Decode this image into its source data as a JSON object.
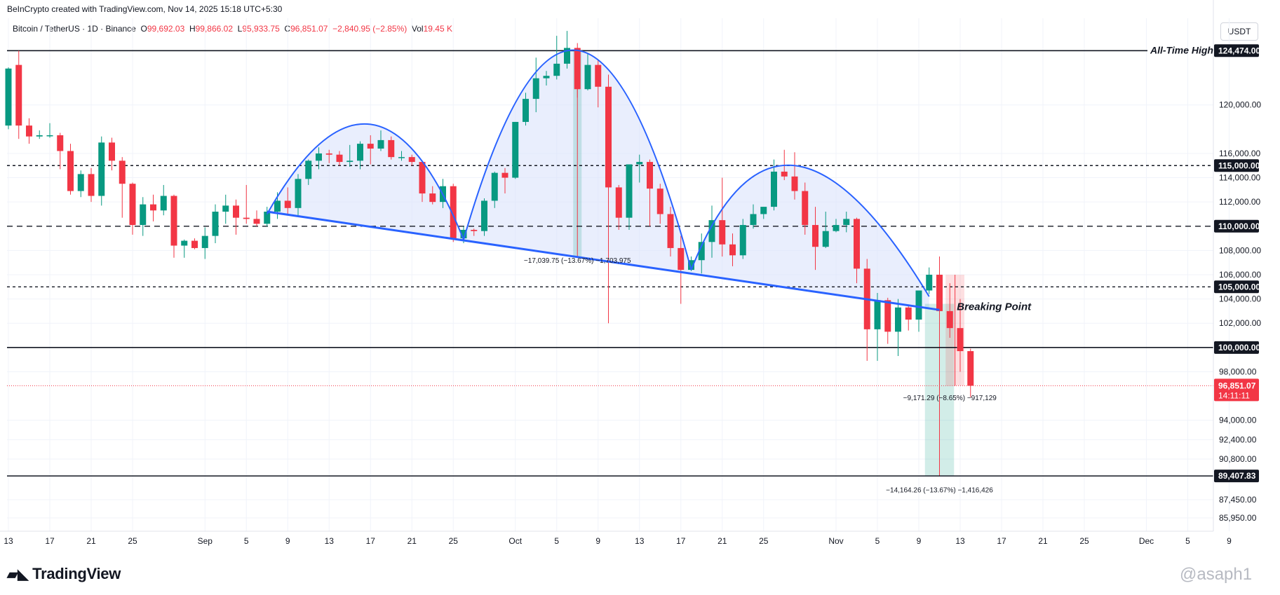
{
  "header": {
    "creator": "BeInCrypto created with TradingView.com, Nov 14, 2025 15:18 UTC+5:30",
    "symbol": "Bitcoin / TetherUS · 1D · Binance",
    "ohlc": {
      "open_label": "O",
      "open": "99,692.03",
      "high_label": "H",
      "high": "99,866.02",
      "low_label": "L",
      "low": "95,933.75",
      "close_label": "C",
      "close": "96,851.07",
      "change": "−2,840.95 (−2.85%)",
      "vol_label": "Vol",
      "vol": "19.45 K"
    },
    "currency": "USDT"
  },
  "footer": {
    "brand": "TradingView",
    "watermark": "@asaph1"
  },
  "colors": {
    "up": "#089981",
    "down": "#f23645",
    "pattern": "#2962ff",
    "pattern_fill": "#dbe3fb"
  },
  "chart_data": {
    "type": "candlestick",
    "ylim": [
      84850,
      127150
    ],
    "y_ticks": [
      {
        "value": 120000,
        "label": "120,000.00"
      },
      {
        "value": 116000,
        "label": "116,000.00"
      },
      {
        "value": 114000,
        "label": "114,000.00"
      },
      {
        "value": 112000,
        "label": "112,000.00"
      },
      {
        "value": 108000,
        "label": "108,000.00"
      },
      {
        "value": 106000,
        "label": "106,000.00"
      },
      {
        "value": 104000,
        "label": "104,000.00"
      },
      {
        "value": 102000,
        "label": "102,000.00"
      },
      {
        "value": 98000,
        "label": "98,000.00"
      },
      {
        "value": 94000,
        "label": "94,000.00"
      },
      {
        "value": 92400,
        "label": "92,400.00"
      },
      {
        "value": 90800,
        "label": "90,800.00"
      },
      {
        "value": 87450,
        "label": "87,450.00"
      },
      {
        "value": 85950,
        "label": "85,950.00"
      }
    ],
    "x_ticks": [
      {
        "date": "2025-08-13",
        "label": "13"
      },
      {
        "date": "2025-08-17",
        "label": "17"
      },
      {
        "date": "2025-08-21",
        "label": "21"
      },
      {
        "date": "2025-08-25",
        "label": "25"
      },
      {
        "date": "2025-09-01",
        "label": "Sep"
      },
      {
        "date": "2025-09-05",
        "label": "5"
      },
      {
        "date": "2025-09-09",
        "label": "9"
      },
      {
        "date": "2025-09-13",
        "label": "13"
      },
      {
        "date": "2025-09-17",
        "label": "17"
      },
      {
        "date": "2025-09-21",
        "label": "21"
      },
      {
        "date": "2025-09-25",
        "label": "25"
      },
      {
        "date": "2025-10-01",
        "label": "Oct"
      },
      {
        "date": "2025-10-05",
        "label": "5"
      },
      {
        "date": "2025-10-09",
        "label": "9"
      },
      {
        "date": "2025-10-13",
        "label": "13"
      },
      {
        "date": "2025-10-17",
        "label": "17"
      },
      {
        "date": "2025-10-21",
        "label": "21"
      },
      {
        "date": "2025-10-25",
        "label": "25"
      },
      {
        "date": "2025-11-01",
        "label": "Nov"
      },
      {
        "date": "2025-11-05",
        "label": "5"
      },
      {
        "date": "2025-11-09",
        "label": "9"
      },
      {
        "date": "2025-11-13",
        "label": "13"
      },
      {
        "date": "2025-11-17",
        "label": "17"
      },
      {
        "date": "2025-11-21",
        "label": "21"
      },
      {
        "date": "2025-11-25",
        "label": "25"
      },
      {
        "date": "2025-12-01",
        "label": "Dec"
      },
      {
        "date": "2025-12-05",
        "label": "5"
      },
      {
        "date": "2025-12-09",
        "label": "9"
      }
    ],
    "candles": [
      {
        "date": "2025-08-13",
        "o": 118300,
        "h": 123100,
        "l": 118000,
        "c": 123000
      },
      {
        "date": "2025-08-14",
        "o": 123300,
        "h": 124474,
        "l": 117200,
        "c": 118300
      },
      {
        "date": "2025-08-15",
        "o": 118300,
        "h": 118900,
        "l": 116800,
        "c": 117400
      },
      {
        "date": "2025-08-16",
        "o": 117400,
        "h": 117900,
        "l": 117200,
        "c": 117500
      },
      {
        "date": "2025-08-17",
        "o": 117500,
        "h": 118500,
        "l": 117300,
        "c": 117500
      },
      {
        "date": "2025-08-18",
        "o": 117500,
        "h": 117700,
        "l": 114700,
        "c": 116200
      },
      {
        "date": "2025-08-19",
        "o": 116200,
        "h": 116800,
        "l": 112600,
        "c": 112900
      },
      {
        "date": "2025-08-20",
        "o": 112900,
        "h": 114600,
        "l": 112400,
        "c": 114300
      },
      {
        "date": "2025-08-21",
        "o": 114300,
        "h": 114800,
        "l": 112000,
        "c": 112500
      },
      {
        "date": "2025-08-22",
        "o": 112500,
        "h": 117400,
        "l": 111700,
        "c": 116900
      },
      {
        "date": "2025-08-23",
        "o": 116900,
        "h": 117300,
        "l": 114600,
        "c": 115400
      },
      {
        "date": "2025-08-24",
        "o": 115400,
        "h": 115700,
        "l": 110700,
        "c": 113500
      },
      {
        "date": "2025-08-25",
        "o": 113500,
        "h": 113600,
        "l": 109300,
        "c": 110100
      },
      {
        "date": "2025-08-26",
        "o": 110100,
        "h": 112400,
        "l": 109200,
        "c": 111800
      },
      {
        "date": "2025-08-27",
        "o": 111800,
        "h": 112600,
        "l": 110400,
        "c": 111300
      },
      {
        "date": "2025-08-28",
        "o": 111300,
        "h": 113400,
        "l": 110900,
        "c": 112500
      },
      {
        "date": "2025-08-29",
        "o": 112500,
        "h": 112600,
        "l": 107400,
        "c": 108400
      },
      {
        "date": "2025-08-30",
        "o": 108400,
        "h": 108900,
        "l": 107400,
        "c": 108800
      },
      {
        "date": "2025-08-31",
        "o": 108800,
        "h": 109000,
        "l": 108100,
        "c": 108200
      },
      {
        "date": "2025-09-01",
        "o": 108200,
        "h": 109900,
        "l": 107300,
        "c": 109200
      },
      {
        "date": "2025-09-02",
        "o": 109200,
        "h": 111800,
        "l": 108600,
        "c": 111200
      },
      {
        "date": "2025-09-03",
        "o": 111200,
        "h": 112600,
        "l": 110200,
        "c": 111700
      },
      {
        "date": "2025-09-04",
        "o": 111700,
        "h": 112200,
        "l": 109300,
        "c": 110700
      },
      {
        "date": "2025-09-05",
        "o": 110700,
        "h": 113400,
        "l": 110200,
        "c": 110600
      },
      {
        "date": "2025-09-06",
        "o": 110600,
        "h": 111300,
        "l": 110000,
        "c": 110200
      },
      {
        "date": "2025-09-07",
        "o": 110200,
        "h": 111600,
        "l": 110000,
        "c": 111200
      },
      {
        "date": "2025-09-08",
        "o": 111200,
        "h": 112800,
        "l": 110600,
        "c": 112100
      },
      {
        "date": "2025-09-09",
        "o": 112100,
        "h": 113200,
        "l": 110900,
        "c": 111500
      },
      {
        "date": "2025-09-10",
        "o": 111500,
        "h": 114300,
        "l": 110800,
        "c": 113900
      },
      {
        "date": "2025-09-11",
        "o": 113900,
        "h": 115500,
        "l": 113400,
        "c": 115400
      },
      {
        "date": "2025-09-12",
        "o": 115400,
        "h": 116500,
        "l": 114700,
        "c": 116000
      },
      {
        "date": "2025-09-13",
        "o": 116000,
        "h": 116300,
        "l": 115200,
        "c": 115900
      },
      {
        "date": "2025-09-14",
        "o": 115900,
        "h": 116200,
        "l": 115000,
        "c": 115300
      },
      {
        "date": "2025-09-15",
        "o": 115300,
        "h": 116700,
        "l": 114900,
        "c": 115400
      },
      {
        "date": "2025-09-16",
        "o": 115400,
        "h": 117000,
        "l": 114700,
        "c": 116800
      },
      {
        "date": "2025-09-17",
        "o": 116800,
        "h": 117500,
        "l": 115100,
        "c": 116400
      },
      {
        "date": "2025-09-18",
        "o": 116400,
        "h": 117900,
        "l": 116200,
        "c": 117100
      },
      {
        "date": "2025-09-19",
        "o": 117100,
        "h": 117400,
        "l": 115500,
        "c": 115700
      },
      {
        "date": "2025-09-20",
        "o": 115700,
        "h": 116200,
        "l": 115400,
        "c": 115700
      },
      {
        "date": "2025-09-21",
        "o": 115700,
        "h": 115900,
        "l": 115000,
        "c": 115300
      },
      {
        "date": "2025-09-22",
        "o": 115300,
        "h": 115400,
        "l": 112000,
        "c": 112700
      },
      {
        "date": "2025-09-23",
        "o": 112700,
        "h": 113300,
        "l": 111800,
        "c": 112000
      },
      {
        "date": "2025-09-24",
        "o": 112000,
        "h": 113900,
        "l": 111500,
        "c": 113300
      },
      {
        "date": "2025-09-25",
        "o": 113300,
        "h": 113500,
        "l": 108700,
        "c": 109000
      },
      {
        "date": "2025-09-26",
        "o": 109000,
        "h": 110000,
        "l": 108600,
        "c": 109700
      },
      {
        "date": "2025-09-27",
        "o": 109700,
        "h": 109800,
        "l": 109200,
        "c": 109600
      },
      {
        "date": "2025-09-28",
        "o": 109600,
        "h": 112300,
        "l": 109200,
        "c": 112100
      },
      {
        "date": "2025-09-29",
        "o": 112100,
        "h": 114500,
        "l": 111500,
        "c": 114400
      },
      {
        "date": "2025-09-30",
        "o": 114400,
        "h": 114800,
        "l": 112700,
        "c": 114000
      },
      {
        "date": "2025-10-01",
        "o": 114000,
        "h": 118600,
        "l": 113900,
        "c": 118600
      },
      {
        "date": "2025-10-02",
        "o": 118600,
        "h": 121000,
        "l": 118300,
        "c": 120500
      },
      {
        "date": "2025-10-03",
        "o": 120500,
        "h": 123900,
        "l": 119400,
        "c": 122200
      },
      {
        "date": "2025-10-04",
        "o": 122200,
        "h": 122800,
        "l": 121600,
        "c": 122400
      },
      {
        "date": "2025-10-05",
        "o": 122400,
        "h": 125700,
        "l": 122100,
        "c": 123400
      },
      {
        "date": "2025-10-06",
        "o": 123400,
        "h": 126100,
        "l": 123000,
        "c": 124700
      },
      {
        "date": "2025-10-07",
        "o": 124700,
        "h": 125100,
        "l": 120600,
        "c": 121300
      },
      {
        "date": "2025-10-08",
        "o": 121300,
        "h": 124200,
        "l": 121200,
        "c": 123300
      },
      {
        "date": "2025-10-09",
        "o": 123300,
        "h": 123700,
        "l": 119800,
        "c": 121500
      },
      {
        "date": "2025-10-10",
        "o": 121500,
        "h": 122500,
        "l": 102000,
        "c": 113200
      },
      {
        "date": "2025-10-11",
        "o": 113200,
        "h": 113400,
        "l": 109700,
        "c": 110700
      },
      {
        "date": "2025-10-12",
        "o": 110700,
        "h": 115100,
        "l": 109700,
        "c": 115100
      },
      {
        "date": "2025-10-13",
        "o": 115100,
        "h": 115900,
        "l": 113600,
        "c": 115300
      },
      {
        "date": "2025-10-14",
        "o": 115300,
        "h": 115500,
        "l": 110000,
        "c": 113100
      },
      {
        "date": "2025-10-15",
        "o": 113100,
        "h": 113500,
        "l": 110200,
        "c": 111000
      },
      {
        "date": "2025-10-16",
        "o": 111000,
        "h": 111600,
        "l": 107500,
        "c": 108200
      },
      {
        "date": "2025-10-17",
        "o": 108200,
        "h": 109200,
        "l": 103600,
        "c": 106400
      },
      {
        "date": "2025-10-18",
        "o": 106400,
        "h": 107500,
        "l": 106300,
        "c": 107200
      },
      {
        "date": "2025-10-19",
        "o": 107200,
        "h": 109400,
        "l": 106100,
        "c": 108700
      },
      {
        "date": "2025-10-20",
        "o": 108700,
        "h": 111700,
        "l": 107400,
        "c": 110500
      },
      {
        "date": "2025-10-21",
        "o": 110500,
        "h": 114000,
        "l": 107500,
        "c": 108500
      },
      {
        "date": "2025-10-22",
        "o": 108500,
        "h": 109400,
        "l": 106700,
        "c": 107600
      },
      {
        "date": "2025-10-23",
        "o": 107600,
        "h": 110600,
        "l": 107300,
        "c": 110100
      },
      {
        "date": "2025-10-24",
        "o": 110100,
        "h": 111800,
        "l": 109800,
        "c": 111000
      },
      {
        "date": "2025-10-25",
        "o": 111000,
        "h": 111600,
        "l": 110600,
        "c": 111600
      },
      {
        "date": "2025-10-26",
        "o": 111600,
        "h": 115500,
        "l": 111300,
        "c": 114500
      },
      {
        "date": "2025-10-27",
        "o": 114500,
        "h": 116300,
        "l": 113800,
        "c": 114100
      },
      {
        "date": "2025-10-28",
        "o": 114100,
        "h": 116100,
        "l": 112200,
        "c": 112900
      },
      {
        "date": "2025-10-29",
        "o": 112900,
        "h": 113600,
        "l": 109300,
        "c": 110100
      },
      {
        "date": "2025-10-30",
        "o": 110100,
        "h": 111600,
        "l": 106400,
        "c": 108300
      },
      {
        "date": "2025-10-31",
        "o": 108300,
        "h": 111200,
        "l": 108200,
        "c": 109600
      },
      {
        "date": "2025-11-01",
        "o": 109600,
        "h": 110600,
        "l": 109500,
        "c": 110100
      },
      {
        "date": "2025-11-02",
        "o": 110100,
        "h": 111200,
        "l": 109500,
        "c": 110600
      },
      {
        "date": "2025-11-03",
        "o": 110600,
        "h": 110700,
        "l": 105300,
        "c": 106500
      },
      {
        "date": "2025-11-04",
        "o": 106500,
        "h": 107300,
        "l": 98900,
        "c": 101500
      },
      {
        "date": "2025-11-05",
        "o": 101500,
        "h": 104500,
        "l": 98900,
        "c": 103900
      },
      {
        "date": "2025-11-06",
        "o": 103900,
        "h": 104100,
        "l": 100300,
        "c": 101300
      },
      {
        "date": "2025-11-07",
        "o": 101300,
        "h": 104000,
        "l": 99300,
        "c": 103300
      },
      {
        "date": "2025-11-08",
        "o": 103300,
        "h": 103400,
        "l": 101400,
        "c": 102300
      },
      {
        "date": "2025-11-09",
        "o": 102300,
        "h": 104500,
        "l": 101300,
        "c": 104700
      },
      {
        "date": "2025-11-10",
        "o": 104700,
        "h": 106600,
        "l": 104400,
        "c": 106000
      },
      {
        "date": "2025-11-11",
        "o": 106000,
        "h": 107500,
        "l": 102500,
        "c": 103000
      },
      {
        "date": "2025-11-12",
        "o": 103000,
        "h": 105300,
        "l": 100800,
        "c": 101600
      },
      {
        "date": "2025-11-13",
        "o": 101600,
        "h": 104000,
        "l": 98000,
        "c": 99700
      },
      {
        "date": "2025-11-14",
        "o": 99700,
        "h": 99900,
        "l": 95900,
        "c": 96851
      }
    ],
    "horizontal_levels": [
      {
        "value": 124474,
        "style": "solid",
        "label": "124,474.00",
        "annotation": "All-Time High"
      },
      {
        "value": 115000,
        "style": "dashed-fine",
        "label": "115,000.00"
      },
      {
        "value": 110000,
        "style": "dashed",
        "label": "110,000.00"
      },
      {
        "value": 105000,
        "style": "dashed-fine",
        "label": "105,000.00"
      },
      {
        "value": 100000,
        "style": "solid",
        "label": "100,000.00"
      },
      {
        "value": 89407.83,
        "style": "solid",
        "label": "89,407.83"
      }
    ],
    "current_price": {
      "value": 96851.07,
      "label": "96,851.07",
      "countdown": "14:11:11"
    },
    "pattern": {
      "name": "head and shoulders",
      "neckline": [
        {
          "date": "2025-09-07",
          "value": 111200
        },
        {
          "date": "2025-11-11",
          "value": 103100
        }
      ],
      "arcs": [
        {
          "start": {
            "date": "2025-09-07",
            "value": 111000
          },
          "peak": {
            "date": "2025-09-17",
            "value": 118400
          },
          "end": {
            "date": "2025-09-26",
            "value": 108900
          }
        },
        {
          "start": {
            "date": "2025-09-26",
            "value": 108900
          },
          "peak": {
            "date": "2025-10-07",
            "value": 124500
          },
          "end": {
            "date": "2025-10-18",
            "value": 106400
          }
        },
        {
          "start": {
            "date": "2025-10-18",
            "value": 106400
          },
          "peak": {
            "date": "2025-10-28",
            "value": 115000
          },
          "end": {
            "date": "2025-11-10",
            "value": 104200
          }
        }
      ]
    },
    "annotations": [
      {
        "text": "Breaking Point",
        "date": "2025-11-12",
        "value": 103300
      },
      {
        "text": "−17,039.75 (−13.67%) −1,703,975",
        "date": "2025-10-07",
        "value": 107200
      },
      {
        "text": "−9,171.29 (−8.65%) −917,129",
        "date": "2025-11-12",
        "value": 95900
      },
      {
        "text": "−14,164.26 (−13.67%) −1,416,426",
        "date": "2025-11-11",
        "value": 88300
      }
    ],
    "measure_ranges": [
      {
        "from_date": "2025-10-07",
        "to_date": "2025-10-07",
        "top": 124500,
        "bottom": 107500,
        "color": "green"
      },
      {
        "from_date": "2025-11-10",
        "to_date": "2025-11-12",
        "top": 103600,
        "bottom": 89407.83,
        "color": "green"
      },
      {
        "from_date": "2025-11-12",
        "to_date": "2025-11-13",
        "top": 106000,
        "bottom": 96851,
        "color": "red"
      }
    ]
  }
}
